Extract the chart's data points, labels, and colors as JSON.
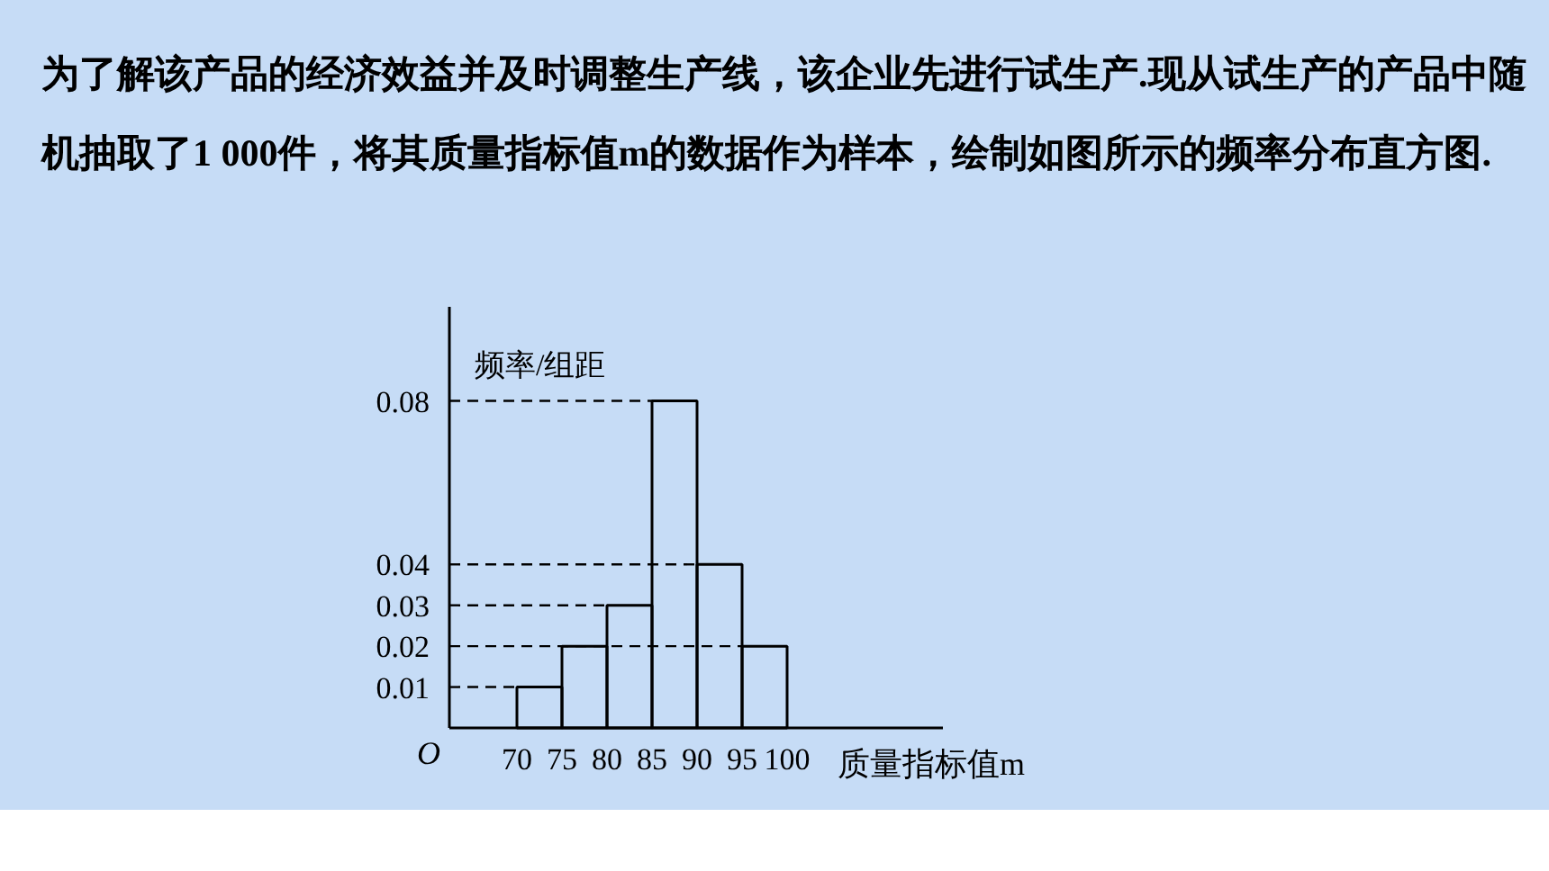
{
  "chart_data": {
    "type": "histogram",
    "title": "为了解该产品的经济效益并及时调整生产线，该企业先进行试生产.现从试生产的产品中随机抽取了1 000件，将其质量指标值m的数据作为样本，绘制如图所示的频率分布直方图.",
    "xlabel": "质量指标值m",
    "ylabel": "频率/组距",
    "annotations": [
      "O"
    ],
    "bins": [
      70,
      75,
      80,
      85,
      90,
      95,
      100
    ],
    "values": [
      0.01,
      0.02,
      0.03,
      0.08,
      0.04,
      0.02
    ],
    "color": "#000000",
    "xlim": [
      62.5,
      117.3
    ],
    "ylim": [
      0,
      0.103
    ],
    "xticks": [
      70,
      75,
      80,
      85,
      90,
      95,
      100
    ],
    "yticks": [
      0.01,
      0.02,
      0.03,
      0.04,
      0.08
    ],
    "ref_lines": [
      {
        "axis": "y",
        "value": 0.01,
        "line_style": "dashed"
      },
      {
        "axis": "y",
        "value": 0.02,
        "line_style": "dashed"
      },
      {
        "axis": "y",
        "value": 0.03,
        "line_style": "dashed"
      },
      {
        "axis": "y",
        "value": 0.04,
        "line_style": "dashed"
      },
      {
        "axis": "y",
        "value": 0.08,
        "line_style": "dashed"
      }
    ],
    "grid": false
  }
}
